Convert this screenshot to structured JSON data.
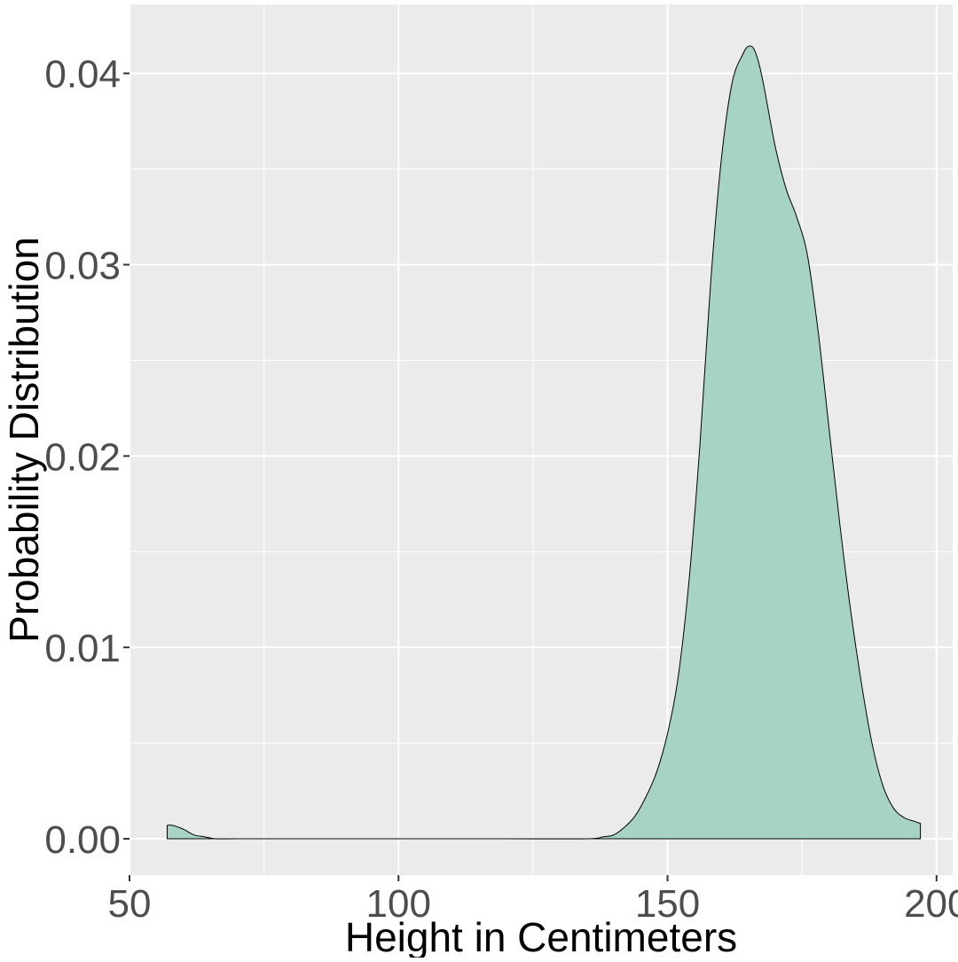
{
  "chart_data": {
    "type": "area",
    "title": "",
    "xlabel": "Height in Centimeters",
    "ylabel": "Probability Distribution",
    "xlim": [
      50,
      203
    ],
    "ylim": [
      -0.0019,
      0.0436
    ],
    "x_ticks": [
      50,
      100,
      150,
      200
    ],
    "x_tick_labels": [
      "50",
      "100",
      "150",
      "200"
    ],
    "y_ticks": [
      0.0,
      0.01,
      0.02,
      0.03,
      0.04
    ],
    "y_tick_labels": [
      "0.00",
      "0.01",
      "0.02",
      "0.03",
      "0.04"
    ],
    "grid": true,
    "fill_color": "#a6d3c3",
    "line_color": "#000000",
    "panel_color": "#ebebeb",
    "grid_color": "#ffffff",
    "series": [
      {
        "x": [
          57,
          58,
          60,
          62,
          64,
          66,
          70,
          80,
          100,
          120,
          135,
          138,
          140,
          142,
          144,
          146,
          148,
          150,
          152,
          154,
          156,
          158,
          160,
          162,
          164,
          165,
          166,
          167,
          168,
          170,
          172,
          174,
          176,
          178,
          180,
          182,
          184,
          186,
          188,
          190,
          192,
          194,
          196,
          197
        ],
        "y": [
          0.0007,
          0.0007,
          0.0005,
          0.0002,
          0.0001,
          0.0,
          0.0,
          0.0,
          0.0,
          0.0,
          0.0,
          0.0001,
          0.0002,
          0.0006,
          0.0012,
          0.0022,
          0.0035,
          0.0055,
          0.0085,
          0.0135,
          0.0205,
          0.029,
          0.0355,
          0.0395,
          0.041,
          0.0414,
          0.0413,
          0.0405,
          0.0392,
          0.0362,
          0.034,
          0.0325,
          0.0305,
          0.0265,
          0.0215,
          0.0165,
          0.012,
          0.0082,
          0.005,
          0.0028,
          0.0016,
          0.0011,
          0.0009,
          0.0008
        ]
      }
    ]
  }
}
